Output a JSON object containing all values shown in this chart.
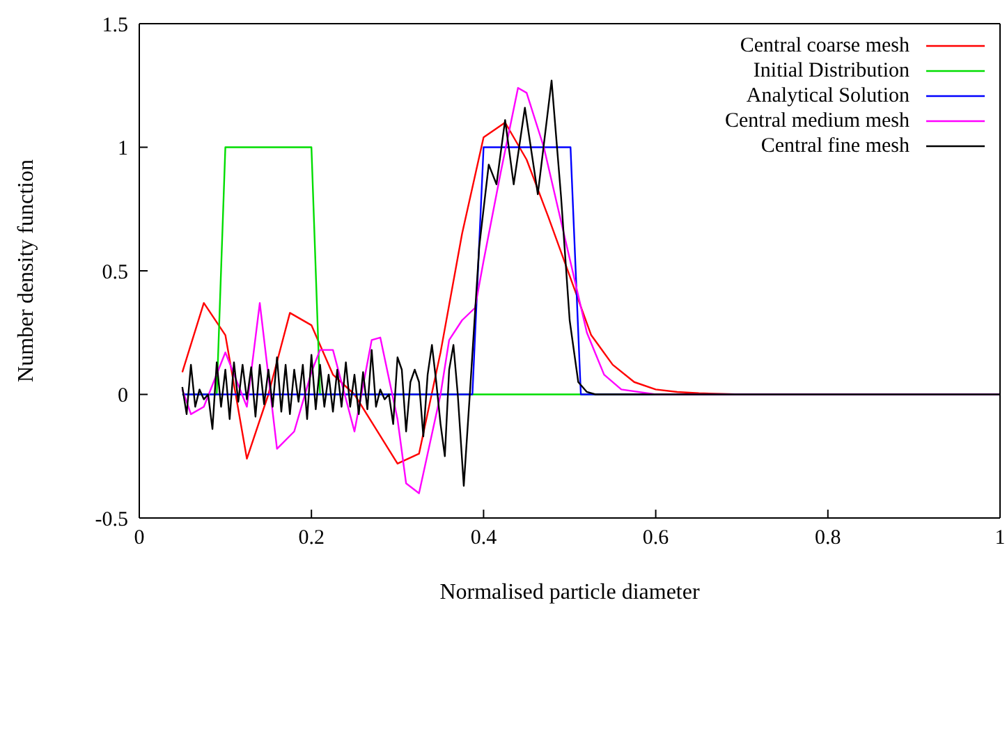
{
  "chart_data": {
    "type": "line",
    "xlabel": "Normalised particle diameter",
    "ylabel": "Number density function",
    "xlim": [
      0,
      1
    ],
    "xticks": [
      0,
      0.2,
      0.4,
      0.6,
      0.8,
      1
    ],
    "ylim": [
      -0.5,
      1.5
    ],
    "yticks": [
      -0.5,
      0,
      0.5,
      1,
      1.5
    ],
    "legend": "top right",
    "marker": "none",
    "line_style": "solid",
    "series": [
      {
        "name": "Central coarse mesh",
        "color": "#ff0000",
        "x": [
          0.05,
          0.075,
          0.1,
          0.125,
          0.15,
          0.175,
          0.2,
          0.225,
          0.25,
          0.275,
          0.3,
          0.325,
          0.35,
          0.375,
          0.4,
          0.425,
          0.45,
          0.475,
          0.5,
          0.525,
          0.55,
          0.575,
          0.6,
          0.625,
          0.65,
          0.7,
          1
        ],
        "values": [
          0.09,
          0.37,
          0.24,
          -0.26,
          0.0,
          0.33,
          0.28,
          0.08,
          0.0,
          -0.14,
          -0.28,
          -0.24,
          0.17,
          0.65,
          1.04,
          1.1,
          0.95,
          0.72,
          0.48,
          0.24,
          0.12,
          0.05,
          0.02,
          0.01,
          0.005,
          0,
          0
        ]
      },
      {
        "name": "Initial Distribution",
        "color": "#00dd00",
        "x": [
          0.05,
          0.09,
          0.1,
          0.2,
          0.21,
          1
        ],
        "values": [
          0,
          0,
          1,
          1,
          0,
          0
        ]
      },
      {
        "name": "Analytical Solution",
        "color": "#0000ff",
        "x": [
          0.05,
          0.387,
          0.4,
          0.501,
          0.513,
          1
        ],
        "values": [
          0,
          0,
          1,
          1,
          0,
          0
        ]
      },
      {
        "name": "Central medium mesh",
        "color": "#ff00ff",
        "x": [
          0.05,
          0.06,
          0.075,
          0.1,
          0.125,
          0.14,
          0.16,
          0.18,
          0.2,
          0.21,
          0.225,
          0.25,
          0.27,
          0.28,
          0.3,
          0.31,
          0.325,
          0.35,
          0.36,
          0.375,
          0.39,
          0.4,
          0.42,
          0.44,
          0.45,
          0.47,
          0.5,
          0.52,
          0.54,
          0.56,
          0.6,
          1
        ],
        "values": [
          0.02,
          -0.08,
          -0.05,
          0.17,
          -0.05,
          0.37,
          -0.22,
          -0.15,
          0.09,
          0.18,
          0.18,
          -0.15,
          0.22,
          0.23,
          -0.1,
          -0.36,
          -0.4,
          0.0,
          0.22,
          0.3,
          0.35,
          0.54,
          0.9,
          1.24,
          1.22,
          1.0,
          0.55,
          0.25,
          0.08,
          0.02,
          0,
          0
        ]
      },
      {
        "name": "Central fine mesh",
        "color": "#000000",
        "x": [
          0.05,
          0.055,
          0.06,
          0.065,
          0.07,
          0.075,
          0.08,
          0.085,
          0.09,
          0.095,
          0.1,
          0.105,
          0.11,
          0.115,
          0.12,
          0.125,
          0.13,
          0.135,
          0.14,
          0.145,
          0.15,
          0.155,
          0.16,
          0.165,
          0.17,
          0.175,
          0.18,
          0.185,
          0.19,
          0.195,
          0.2,
          0.205,
          0.21,
          0.215,
          0.22,
          0.225,
          0.23,
          0.235,
          0.24,
          0.245,
          0.25,
          0.255,
          0.26,
          0.265,
          0.27,
          0.275,
          0.28,
          0.285,
          0.29,
          0.295,
          0.3,
          0.305,
          0.31,
          0.315,
          0.32,
          0.325,
          0.33,
          0.335,
          0.34,
          0.345,
          0.35,
          0.355,
          0.36,
          0.365,
          0.37,
          0.377,
          0.384,
          0.395,
          0.406,
          0.415,
          0.425,
          0.435,
          0.448,
          0.463,
          0.479,
          0.49,
          0.5,
          0.51,
          0.52,
          0.53,
          0.55,
          1
        ],
        "values": [
          0.03,
          -0.08,
          0.12,
          -0.05,
          0.02,
          -0.02,
          0.0,
          -0.14,
          0.13,
          -0.05,
          0.1,
          -0.1,
          0.13,
          -0.03,
          0.12,
          -0.02,
          0.11,
          -0.09,
          0.12,
          -0.04,
          0.1,
          -0.05,
          0.15,
          -0.07,
          0.12,
          -0.08,
          0.1,
          -0.03,
          0.12,
          -0.1,
          0.16,
          -0.06,
          0.12,
          -0.05,
          0.08,
          -0.07,
          0.1,
          -0.05,
          0.13,
          -0.05,
          0.08,
          -0.08,
          0.09,
          -0.06,
          0.18,
          -0.05,
          0.02,
          -0.02,
          0.0,
          -0.12,
          0.15,
          0.1,
          -0.15,
          0.05,
          0.1,
          0.05,
          -0.17,
          0.08,
          0.2,
          0.05,
          -0.12,
          -0.25,
          0.1,
          0.2,
          0.0,
          -0.37,
          0.0,
          0.6,
          0.93,
          0.85,
          1.11,
          0.85,
          1.16,
          0.81,
          1.27,
          0.8,
          0.3,
          0.05,
          0.01,
          0,
          0,
          0
        ]
      }
    ]
  }
}
